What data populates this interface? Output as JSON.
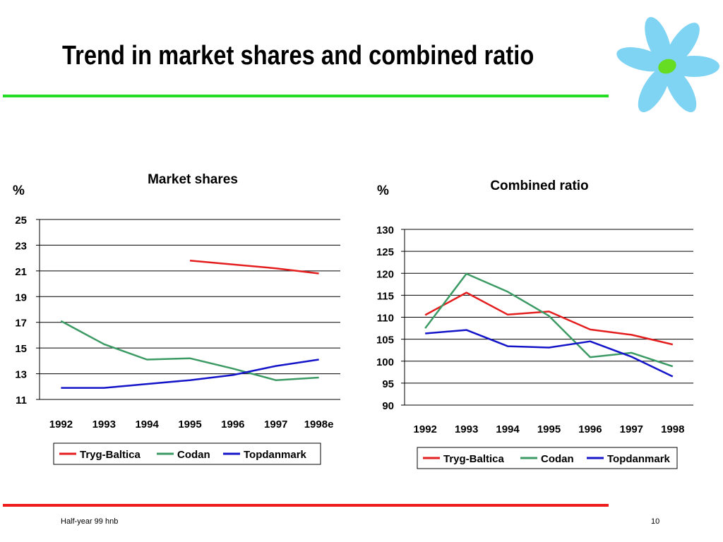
{
  "slide": {
    "title": "Trend in market shares and combined ratio",
    "footer_left": "Half-year 99 hnb",
    "page_number": "10"
  },
  "colors": {
    "Tryg-Baltica": "#e41e1e",
    "Codan": "#3c9a64",
    "Topdanmark": "#1414c8",
    "green_rule": "#22dd22",
    "red_rule": "#ee1c1c",
    "logo_petals": "#7fd3f3",
    "logo_center": "#66dd22"
  },
  "chart_data": [
    {
      "type": "line",
      "title": "Market shares",
      "ylabel": "%",
      "categories": [
        "1992",
        "1993",
        "1994",
        "1995",
        "1996",
        "1997",
        "1998e"
      ],
      "ylim": [
        11,
        25
      ],
      "yticks": [
        11,
        13,
        15,
        17,
        19,
        21,
        23,
        25
      ],
      "grid": true,
      "legend": "bottom",
      "series": [
        {
          "name": "Tryg-Baltica",
          "values": [
            null,
            null,
            null,
            21.8,
            21.5,
            21.2,
            20.8
          ]
        },
        {
          "name": "Codan",
          "values": [
            17.1,
            15.3,
            14.1,
            14.2,
            13.4,
            12.5,
            12.7
          ]
        },
        {
          "name": "Topdanmark",
          "values": [
            11.9,
            11.9,
            12.2,
            12.5,
            12.9,
            13.6,
            14.1
          ]
        }
      ]
    },
    {
      "type": "line",
      "title": "Combined ratio",
      "ylabel": "%",
      "categories": [
        "1992",
        "1993",
        "1994",
        "1995",
        "1996",
        "1997",
        "1998"
      ],
      "ylim": [
        90,
        130
      ],
      "yticks": [
        90,
        95,
        100,
        105,
        110,
        115,
        120,
        125,
        130
      ],
      "grid": true,
      "legend": "bottom",
      "series": [
        {
          "name": "Tryg-Baltica",
          "values": [
            110.5,
            115.6,
            110.6,
            111.3,
            107.2,
            106.0,
            103.8
          ]
        },
        {
          "name": "Codan",
          "values": [
            107.5,
            119.9,
            115.8,
            110.3,
            100.9,
            101.9,
            98.8
          ]
        },
        {
          "name": "Topdanmark",
          "values": [
            106.3,
            107.1,
            103.4,
            103.1,
            104.5,
            101.0,
            96.5
          ]
        }
      ]
    }
  ]
}
